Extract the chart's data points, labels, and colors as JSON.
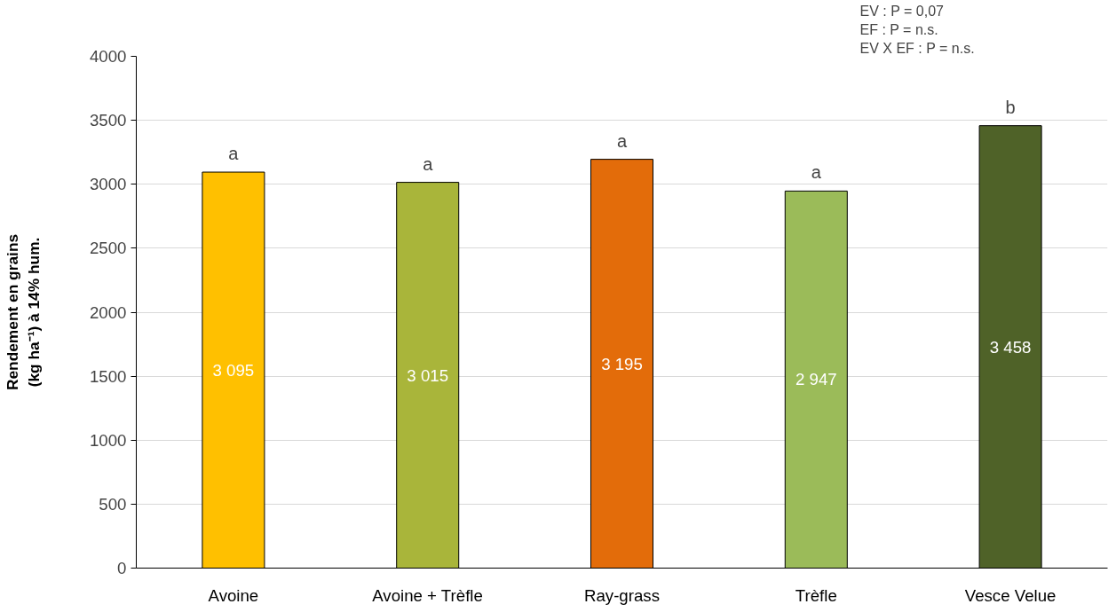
{
  "chart_data": {
    "type": "bar",
    "ylabel": "Rendement en grains\n(kg ha⁻¹) à 14% hum.",
    "categories": [
      "Avoine",
      "Avoine + Trèfle",
      "Ray-grass",
      "Trèfle",
      "Vesce Velue"
    ],
    "values": [
      3095,
      3015,
      3195,
      2947,
      3458
    ],
    "value_labels": [
      "3 095",
      "3 015",
      "3 195",
      "2 947",
      "3 458"
    ],
    "colors": [
      "#ffc000",
      "#a9b53a",
      "#e36c0a",
      "#9bbb59",
      "#4f6228"
    ],
    "ylim": [
      0,
      4000
    ],
    "yticks": [
      0,
      500,
      1000,
      1500,
      2000,
      2500,
      3000,
      3500,
      4000
    ],
    "grid": "y",
    "annotations": [
      {
        "text": "a",
        "x": "Avoine",
        "y": 3095
      },
      {
        "text": "a",
        "x": "Avoine + Trèfle",
        "y": 3015
      },
      {
        "text": "a",
        "x": "Ray-grass",
        "y": 3195
      },
      {
        "text": "a",
        "x": "Trèfle",
        "y": 2947
      },
      {
        "text": "b",
        "x": "Vesce Velue",
        "y": 3458
      },
      "EV : P = 0,07",
      "EF : P = n.s.",
      "EV X EF : P = n.s."
    ]
  }
}
